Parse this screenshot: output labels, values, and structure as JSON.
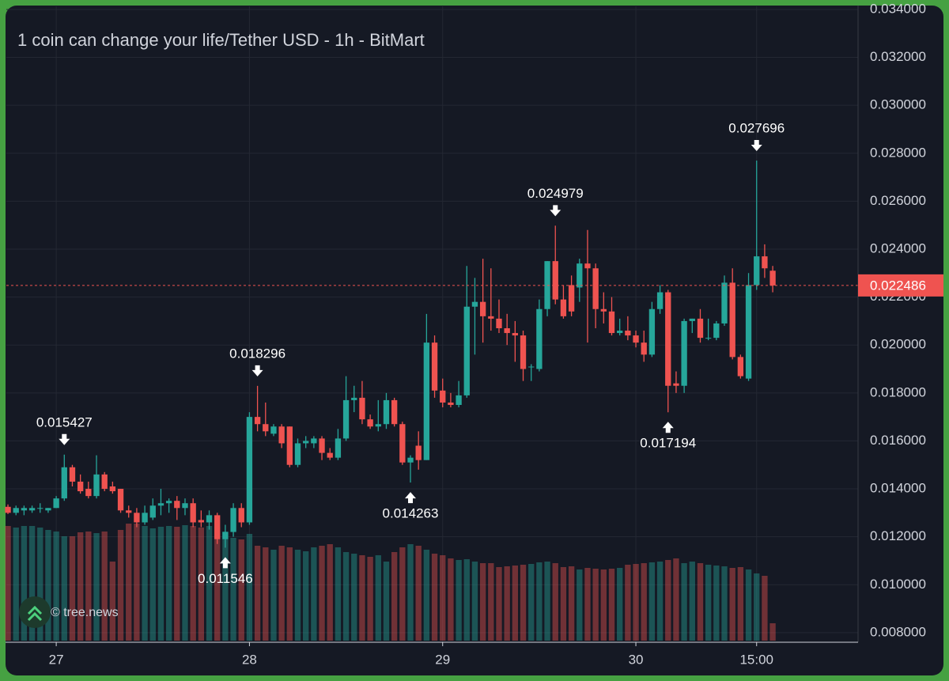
{
  "chart_data": {
    "type": "candlestick",
    "title": "1 coin can change your life/Tether USD - 1h - BitMart",
    "watermark": "© tree.news",
    "up_color": "#26a69a",
    "down_color": "#ef5350",
    "open": [
      0.01325,
      0.013,
      0.0131,
      0.0131,
      0.0132,
      0.0131,
      0.0132,
      0.0136,
      0.0149,
      0.0143,
      0.014,
      0.0137,
      0.0146,
      0.0141,
      0.014,
      0.0131,
      0.013,
      0.0126,
      0.0128,
      0.0133,
      0.0134,
      0.0135,
      0.0132,
      0.0134,
      0.0127,
      0.0126,
      0.0129,
      0.0119,
      0.0122,
      0.0132,
      0.0126,
      0.017,
      0.0167,
      0.0163,
      0.0166,
      0.0166,
      0.015,
      0.0159,
      0.0159,
      0.0161,
      0.0155,
      0.0153,
      0.0161,
      0.0177,
      0.0178,
      0.0169,
      0.0166,
      0.0167,
      0.0177,
      0.0167,
      0.0151,
      0.0158,
      0.0152,
      0.0201,
      0.0181,
      0.0176,
      0.0175,
      0.0179,
      0.0216,
      0.0218,
      0.0212,
      0.0211,
      0.0207,
      0.0205,
      0.0204,
      0.0191,
      0.019,
      0.0215,
      0.0235,
      0.0219,
      0.0225,
      0.0224,
      0.0234,
      0.0232,
      0.0215,
      0.0214,
      0.0205,
      0.0206,
      0.0204,
      0.0201,
      0.0196,
      0.0215,
      0.0222,
      0.0184,
      0.0183,
      0.021,
      0.0211,
      0.0203,
      0.0203,
      0.0209,
      0.0226,
      0.0195,
      0.0186,
      0.0225,
      0.0237,
      0.0231
    ],
    "high": [
      0.01335,
      0.0133,
      0.0133,
      0.0133,
      0.0134,
      0.0132,
      0.0137,
      0.015427,
      0.015,
      0.0146,
      0.0143,
      0.0154,
      0.0147,
      0.0143,
      0.014,
      0.0133,
      0.0132,
      0.0133,
      0.0136,
      0.014,
      0.0136,
      0.0137,
      0.0136,
      0.0136,
      0.0131,
      0.0131,
      0.013,
      0.0125,
      0.0134,
      0.0134,
      0.0172,
      0.018296,
      0.0176,
      0.0167,
      0.0167,
      0.0166,
      0.0161,
      0.0162,
      0.0162,
      0.0162,
      0.0157,
      0.0165,
      0.0187,
      0.0183,
      0.0185,
      0.0171,
      0.0177,
      0.018,
      0.0178,
      0.0168,
      0.0154,
      0.0164,
      0.0213,
      0.0204,
      0.0186,
      0.018,
      0.0185,
      0.0233,
      0.0228,
      0.0236,
      0.0232,
      0.0219,
      0.0213,
      0.021,
      0.0206,
      0.0192,
      0.0219,
      0.0235,
      0.024979,
      0.0225,
      0.0229,
      0.0236,
      0.0248,
      0.0234,
      0.0222,
      0.022,
      0.0211,
      0.0212,
      0.0206,
      0.0206,
      0.0218,
      0.0225,
      0.0223,
      0.0189,
      0.0211,
      0.0211,
      0.0215,
      0.0211,
      0.021,
      0.0229,
      0.0232,
      0.0196,
      0.023,
      0.027696,
      0.0242,
      0.0233
    ],
    "low": [
      0.01295,
      0.0129,
      0.0129,
      0.013,
      0.013,
      0.013,
      0.0132,
      0.0135,
      0.0141,
      0.0138,
      0.0136,
      0.0136,
      0.0139,
      0.0138,
      0.013,
      0.0128,
      0.0124,
      0.0125,
      0.0127,
      0.0129,
      0.013,
      0.0127,
      0.0129,
      0.0124,
      0.0124,
      0.0123,
      0.0117,
      0.011546,
      0.012,
      0.0124,
      0.0125,
      0.0164,
      0.0162,
      0.0162,
      0.0157,
      0.0149,
      0.0149,
      0.0157,
      0.0157,
      0.0152,
      0.0152,
      0.0152,
      0.016,
      0.0172,
      0.0167,
      0.0165,
      0.0164,
      0.0165,
      0.0166,
      0.015,
      0.014263,
      0.0148,
      0.0152,
      0.0178,
      0.0174,
      0.0174,
      0.0174,
      0.0178,
      0.0196,
      0.0201,
      0.0206,
      0.0205,
      0.02,
      0.0193,
      0.0185,
      0.0185,
      0.0189,
      0.0212,
      0.0217,
      0.0211,
      0.0212,
      0.0218,
      0.0201,
      0.0207,
      0.0209,
      0.0204,
      0.0204,
      0.0202,
      0.0199,
      0.0193,
      0.0195,
      0.0213,
      0.017194,
      0.018,
      0.018,
      0.0205,
      0.0201,
      0.0202,
      0.0202,
      0.0208,
      0.0194,
      0.0186,
      0.0185,
      0.0223,
      0.0228,
      0.0222
    ],
    "close": [
      0.013,
      0.0132,
      0.0132,
      0.0132,
      0.0132,
      0.0132,
      0.0136,
      0.0149,
      0.0143,
      0.0139,
      0.0137,
      0.0146,
      0.014,
      0.0139,
      0.0131,
      0.013,
      0.0126,
      0.013,
      0.0133,
      0.0134,
      0.0135,
      0.0132,
      0.0134,
      0.0126,
      0.0126,
      0.0129,
      0.0119,
      0.0122,
      0.0132,
      0.0126,
      0.017,
      0.0167,
      0.0164,
      0.0166,
      0.0159,
      0.015,
      0.0159,
      0.016,
      0.0161,
      0.0155,
      0.0153,
      0.0161,
      0.0177,
      0.0178,
      0.0169,
      0.0166,
      0.0167,
      0.0177,
      0.0167,
      0.0151,
      0.0153,
      0.0152,
      0.0201,
      0.0181,
      0.0176,
      0.0175,
      0.0179,
      0.0216,
      0.0218,
      0.0212,
      0.0211,
      0.0207,
      0.0205,
      0.0204,
      0.019,
      0.0191,
      0.0215,
      0.0235,
      0.0219,
      0.0212,
      0.0214,
      0.0234,
      0.0232,
      0.0215,
      0.0214,
      0.0205,
      0.0206,
      0.0204,
      0.0201,
      0.0196,
      0.0215,
      0.0222,
      0.0183,
      0.0183,
      0.021,
      0.0211,
      0.0203,
      0.0203,
      0.0209,
      0.0226,
      0.0195,
      0.0187,
      0.0225,
      0.0237,
      0.0232,
      0.022486
    ],
    "volume": [
      145,
      143,
      145,
      145,
      143,
      140,
      138,
      132,
      132,
      137,
      138,
      136,
      138,
      100,
      140,
      148,
      148,
      145,
      142,
      144,
      145,
      144,
      146,
      145,
      143,
      145,
      144,
      138,
      130,
      128,
      135,
      120,
      118,
      115,
      120,
      118,
      115,
      113,
      118,
      120,
      122,
      118,
      112,
      110,
      108,
      106,
      108,
      100,
      112,
      118,
      122,
      120,
      115,
      110,
      108,
      104,
      102,
      103,
      100,
      98,
      98,
      93,
      94,
      95,
      96,
      97,
      99,
      100,
      98,
      93,
      94,
      90,
      92,
      91,
      90,
      91,
      92,
      96,
      97,
      98,
      99,
      100,
      102,
      104,
      98,
      100,
      98,
      96,
      95,
      94,
      92,
      93,
      90,
      85,
      82,
      22
    ],
    "last_price": 0.022486,
    "annotations": [
      {
        "x": 7,
        "value": 0.015427,
        "side": "above"
      },
      {
        "x": 27,
        "value": 0.011546,
        "side": "below"
      },
      {
        "x": 31,
        "value": 0.018296,
        "side": "above"
      },
      {
        "x": 50,
        "value": 0.014263,
        "side": "below"
      },
      {
        "x": 68,
        "value": 0.024979,
        "side": "above"
      },
      {
        "x": 82,
        "value": 0.017194,
        "side": "below"
      },
      {
        "x": 93,
        "value": 0.027696,
        "side": "above"
      }
    ],
    "xlim": [
      -0.2,
      105.6
    ],
    "xticks": [
      {
        "value": 6,
        "label": "27"
      },
      {
        "value": 30,
        "label": "28"
      },
      {
        "value": 54,
        "label": "29"
      },
      {
        "value": 78,
        "label": "30"
      },
      {
        "value": 93,
        "label": "15:00"
      }
    ],
    "ylim": [
      0.0076,
      0.03413
    ],
    "yticks": [
      {
        "value": 0.034,
        "label": "0.034000"
      },
      {
        "value": 0.032,
        "label": "0.032000"
      },
      {
        "value": 0.03,
        "label": "0.030000"
      },
      {
        "value": 0.028,
        "label": "0.028000"
      },
      {
        "value": 0.026,
        "label": "0.026000"
      },
      {
        "value": 0.024,
        "label": "0.024000"
      },
      {
        "value": 0.022,
        "label": "0.022000"
      },
      {
        "value": 0.02,
        "label": "0.020000"
      },
      {
        "value": 0.018,
        "label": "0.018000"
      },
      {
        "value": 0.016,
        "label": "0.016000"
      },
      {
        "value": 0.014,
        "label": "0.014000"
      },
      {
        "value": 0.012,
        "label": "0.012000"
      },
      {
        "value": 0.01,
        "label": "0.010000"
      },
      {
        "value": 0.008,
        "label": "0.008000"
      }
    ],
    "grid": true
  }
}
